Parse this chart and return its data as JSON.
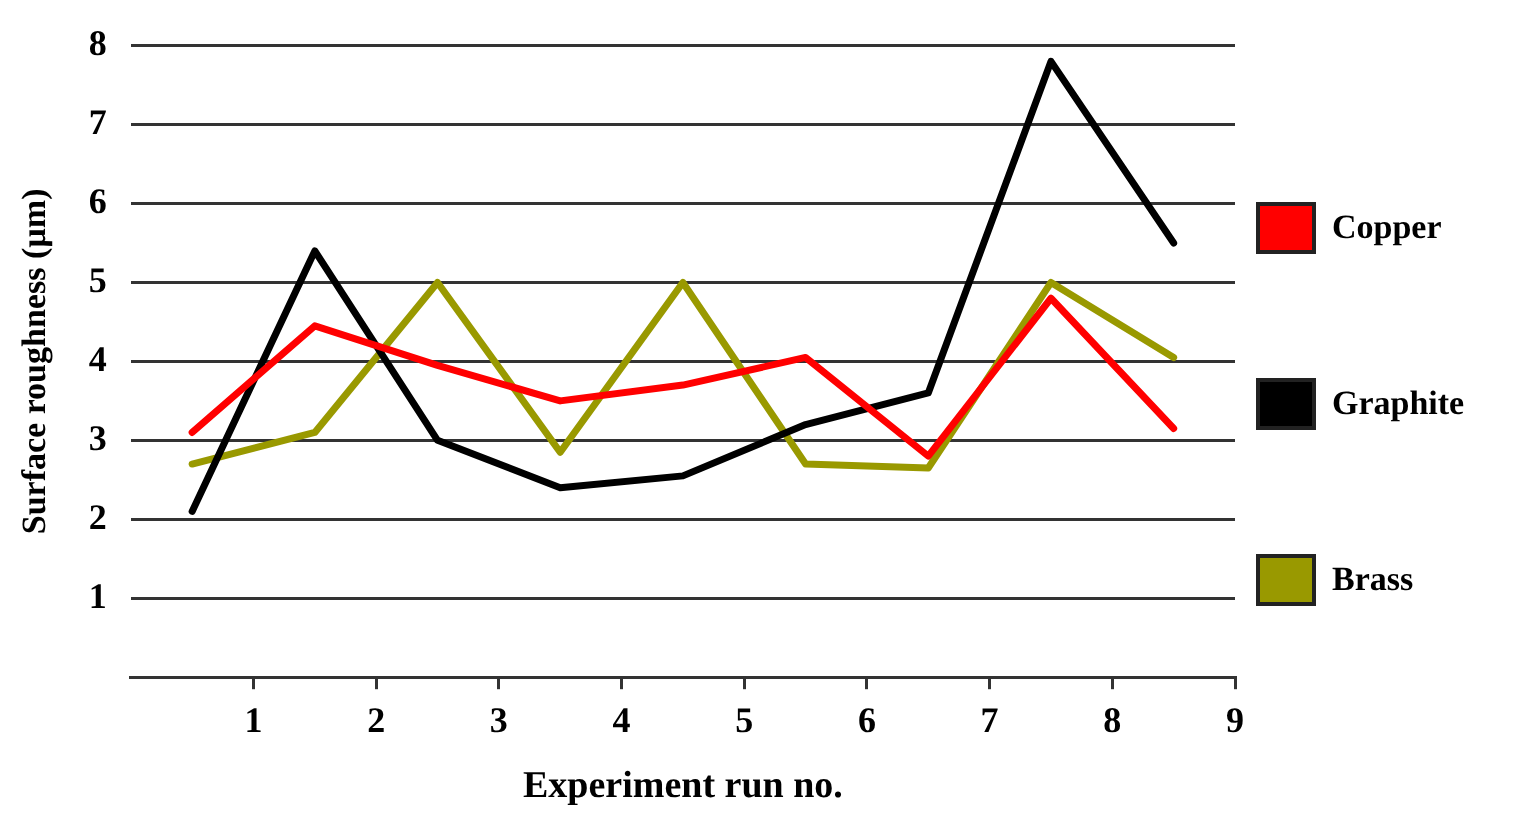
{
  "chart_data": {
    "type": "line",
    "xlabel": "Experiment run no.",
    "ylabel": "Surface roughness (µm)",
    "x": [
      0.5,
      1.5,
      2.5,
      3.5,
      4.5,
      5.5,
      6.5,
      7.5,
      8.5
    ],
    "series": [
      {
        "name": "Copper",
        "color": "#ff0000",
        "values": [
          3.1,
          4.45,
          3.95,
          3.5,
          3.7,
          4.05,
          2.8,
          4.8,
          3.15
        ]
      },
      {
        "name": "Graphite",
        "color": "#000000",
        "values": [
          2.1,
          5.4,
          3.0,
          2.4,
          2.55,
          3.2,
          3.6,
          7.8,
          5.5
        ]
      },
      {
        "name": "Brass",
        "color": "#999900",
        "values": [
          2.7,
          3.1,
          5.0,
          2.85,
          5.0,
          2.7,
          2.65,
          5.0,
          4.05
        ]
      }
    ],
    "xlim": [
      0,
      9
    ],
    "xticks": [
      1,
      2,
      3,
      4,
      5,
      6,
      7,
      8,
      9
    ],
    "ylim": [
      0,
      8
    ],
    "yticks": [
      1,
      2,
      3,
      4,
      5,
      6,
      7,
      8
    ],
    "grid": "y",
    "legend": "right",
    "marker": "none",
    "line_style": "solid"
  }
}
